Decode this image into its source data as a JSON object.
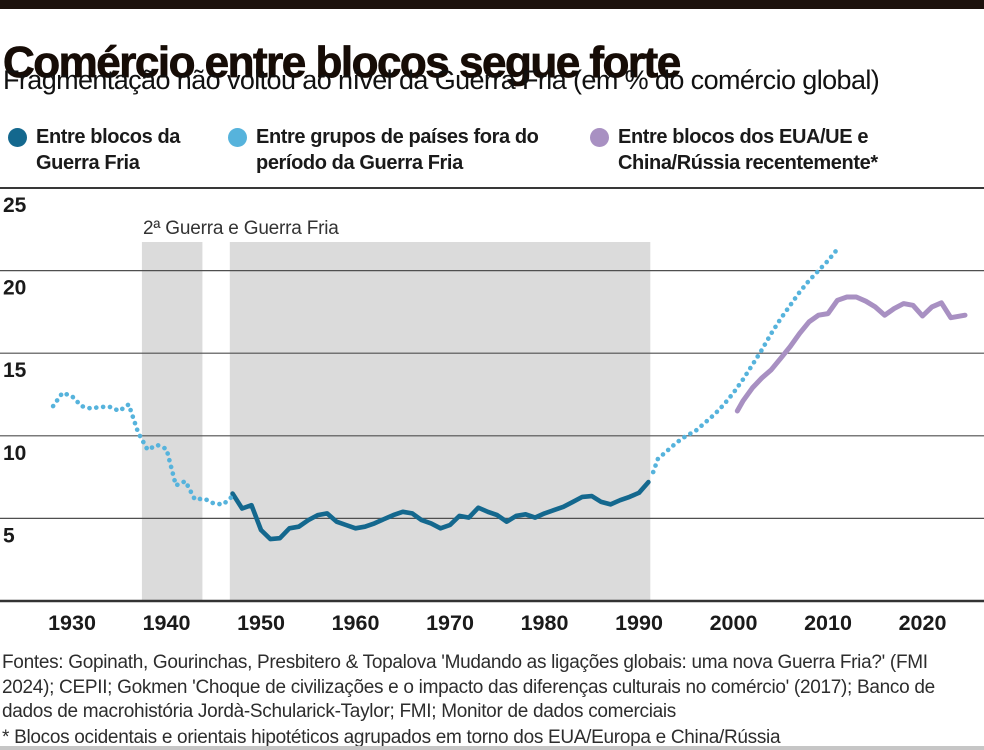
{
  "header": {
    "title": "Comércio entre blocos segue forte",
    "subtitle": "Fragmentação não voltou ao nível da Guerra Fria (em % do comércio global)"
  },
  "legend": {
    "items": [
      {
        "line1": "Entre blocos da",
        "line2": "Guerra Fria",
        "color": "#14688e"
      },
      {
        "line1": "Entre grupos de países fora do",
        "line2": "período da Guerra Fria",
        "color": "#56b3dc"
      },
      {
        "line1": "Entre blocos dos EUA/UE e",
        "line2": "China/Rússia recentemente*",
        "color": "#a890c2"
      }
    ]
  },
  "chart_data": {
    "type": "line",
    "unit": "% do comércio global",
    "ylim": [
      0,
      25
    ],
    "yticks": [
      25,
      20,
      15,
      10,
      5
    ],
    "xticks": [
      1930,
      1940,
      1950,
      1960,
      1970,
      1980,
      1990,
      2000,
      2010,
      2020
    ],
    "xlim": [
      1922,
      2026
    ],
    "grid": "horizontal",
    "legend_position": "top",
    "annotation": "2ª Guerra e Guerra Fria",
    "band_color": "#dbdbdb",
    "bands": [
      {
        "label": "2ª Guerra",
        "from": 1937.4,
        "to": 1943.8
      },
      {
        "label": "Guerra Fria",
        "from": 1946.7,
        "to": 1991.2
      }
    ],
    "series": [
      {
        "name": "Entre blocos da Guerra Fria",
        "color": "#14688e",
        "style": "solid",
        "points": [
          [
            1947,
            6.5
          ],
          [
            1948,
            5.6
          ],
          [
            1949,
            5.8
          ],
          [
            1950,
            4.3
          ],
          [
            1951,
            3.75
          ],
          [
            1952,
            3.8
          ],
          [
            1953,
            4.4
          ],
          [
            1954,
            4.5
          ],
          [
            1955,
            4.9
          ],
          [
            1956,
            5.2
          ],
          [
            1957,
            5.3
          ],
          [
            1958,
            4.8
          ],
          [
            1959,
            4.6
          ],
          [
            1960,
            4.4
          ],
          [
            1961,
            4.5
          ],
          [
            1962,
            4.7
          ],
          [
            1963,
            4.95
          ],
          [
            1964,
            5.2
          ],
          [
            1965,
            5.4
          ],
          [
            1966,
            5.3
          ],
          [
            1967,
            4.9
          ],
          [
            1968,
            4.7
          ],
          [
            1969,
            4.4
          ],
          [
            1970,
            4.6
          ],
          [
            1971,
            5.15
          ],
          [
            1972,
            5.05
          ],
          [
            1973,
            5.65
          ],
          [
            1974,
            5.4
          ],
          [
            1975,
            5.2
          ],
          [
            1976,
            4.8
          ],
          [
            1977,
            5.15
          ],
          [
            1978,
            5.25
          ],
          [
            1979,
            5.05
          ],
          [
            1980,
            5.3
          ],
          [
            1981,
            5.5
          ],
          [
            1982,
            5.7
          ],
          [
            1983,
            6.0
          ],
          [
            1984,
            6.3
          ],
          [
            1985,
            6.35
          ],
          [
            1986,
            6.0
          ],
          [
            1987,
            5.85
          ],
          [
            1988,
            6.1
          ],
          [
            1989,
            6.3
          ],
          [
            1990,
            6.55
          ],
          [
            1991,
            7.2
          ]
        ]
      },
      {
        "name": "Entre grupos de países fora do período da Guerra Fria (1928-1947)",
        "color": "#56b3dc",
        "style": "dotted",
        "points": [
          [
            1928,
            11.8
          ],
          [
            1929,
            12.6
          ],
          [
            1930,
            12.4
          ],
          [
            1931,
            11.8
          ],
          [
            1932,
            11.65
          ],
          [
            1933,
            11.75
          ],
          [
            1934,
            11.75
          ],
          [
            1935,
            11.5
          ],
          [
            1936,
            11.9
          ],
          [
            1937,
            10.2
          ],
          [
            1938,
            9.15
          ],
          [
            1939,
            9.45
          ],
          [
            1940,
            9.2
          ],
          [
            1941,
            7.0
          ],
          [
            1942,
            7.25
          ],
          [
            1943,
            6.15
          ],
          [
            1944,
            6.2
          ],
          [
            1945,
            5.9
          ],
          [
            1946,
            5.85
          ],
          [
            1947,
            6.35
          ]
        ]
      },
      {
        "name": "Entre grupos de países fora do período da Guerra Fria (1991-2011)",
        "color": "#56b3dc",
        "style": "dotted",
        "points": [
          [
            1991.5,
            7.8
          ],
          [
            1992,
            8.6
          ],
          [
            1993,
            9.1
          ],
          [
            1994,
            9.6
          ],
          [
            1995,
            10.0
          ],
          [
            1996,
            10.3
          ],
          [
            1997,
            10.8
          ],
          [
            1998,
            11.3
          ],
          [
            1999,
            11.9
          ],
          [
            2000,
            12.6
          ],
          [
            2001,
            13.4
          ],
          [
            2002,
            14.3
          ],
          [
            2003,
            15.2
          ],
          [
            2004,
            16.2
          ],
          [
            2005,
            17.1
          ],
          [
            2006,
            17.9
          ],
          [
            2007,
            18.7
          ],
          [
            2008,
            19.4
          ],
          [
            2009,
            20.0
          ],
          [
            2010,
            20.6
          ],
          [
            2011,
            21.3
          ]
        ]
      },
      {
        "name": "Entre blocos dos EUA/UE e China/Rússia recentemente",
        "color": "#a890c2",
        "style": "solid",
        "points": [
          [
            2000.4,
            11.5
          ],
          [
            2001,
            12.1
          ],
          [
            2002,
            12.9
          ],
          [
            2003,
            13.5
          ],
          [
            2004,
            14.0
          ],
          [
            2005,
            14.7
          ],
          [
            2006,
            15.4
          ],
          [
            2007,
            16.2
          ],
          [
            2008,
            16.9
          ],
          [
            2009,
            17.3
          ],
          [
            2010,
            17.4
          ],
          [
            2011,
            18.2
          ],
          [
            2012,
            18.4
          ],
          [
            2013,
            18.4
          ],
          [
            2014,
            18.15
          ],
          [
            2015,
            17.8
          ],
          [
            2016,
            17.3
          ],
          [
            2017,
            17.7
          ],
          [
            2018,
            18.0
          ],
          [
            2019,
            17.9
          ],
          [
            2020,
            17.25
          ],
          [
            2021,
            17.8
          ],
          [
            2022,
            18.05
          ],
          [
            2023,
            17.15
          ],
          [
            2024.5,
            17.3
          ]
        ]
      }
    ]
  },
  "footer": {
    "sources": "Fontes:  Gopinath, Gourinchas, Presbitero & Topalova 'Mudando as ligações globais: uma nova Guerra Fria?' (FMI 2024); CEPII; Gokmen 'Choque de civilizações e o impacto das diferenças culturais no comércio' (2017); Banco de dados de macrohistória Jordà-Schularick-Taylor; FMI; Monitor de dados comerciais",
    "footnote": "* Blocos ocidentais e orientais hipotéticos agrupados em torno dos EUA/Europa e China/Rússia"
  }
}
